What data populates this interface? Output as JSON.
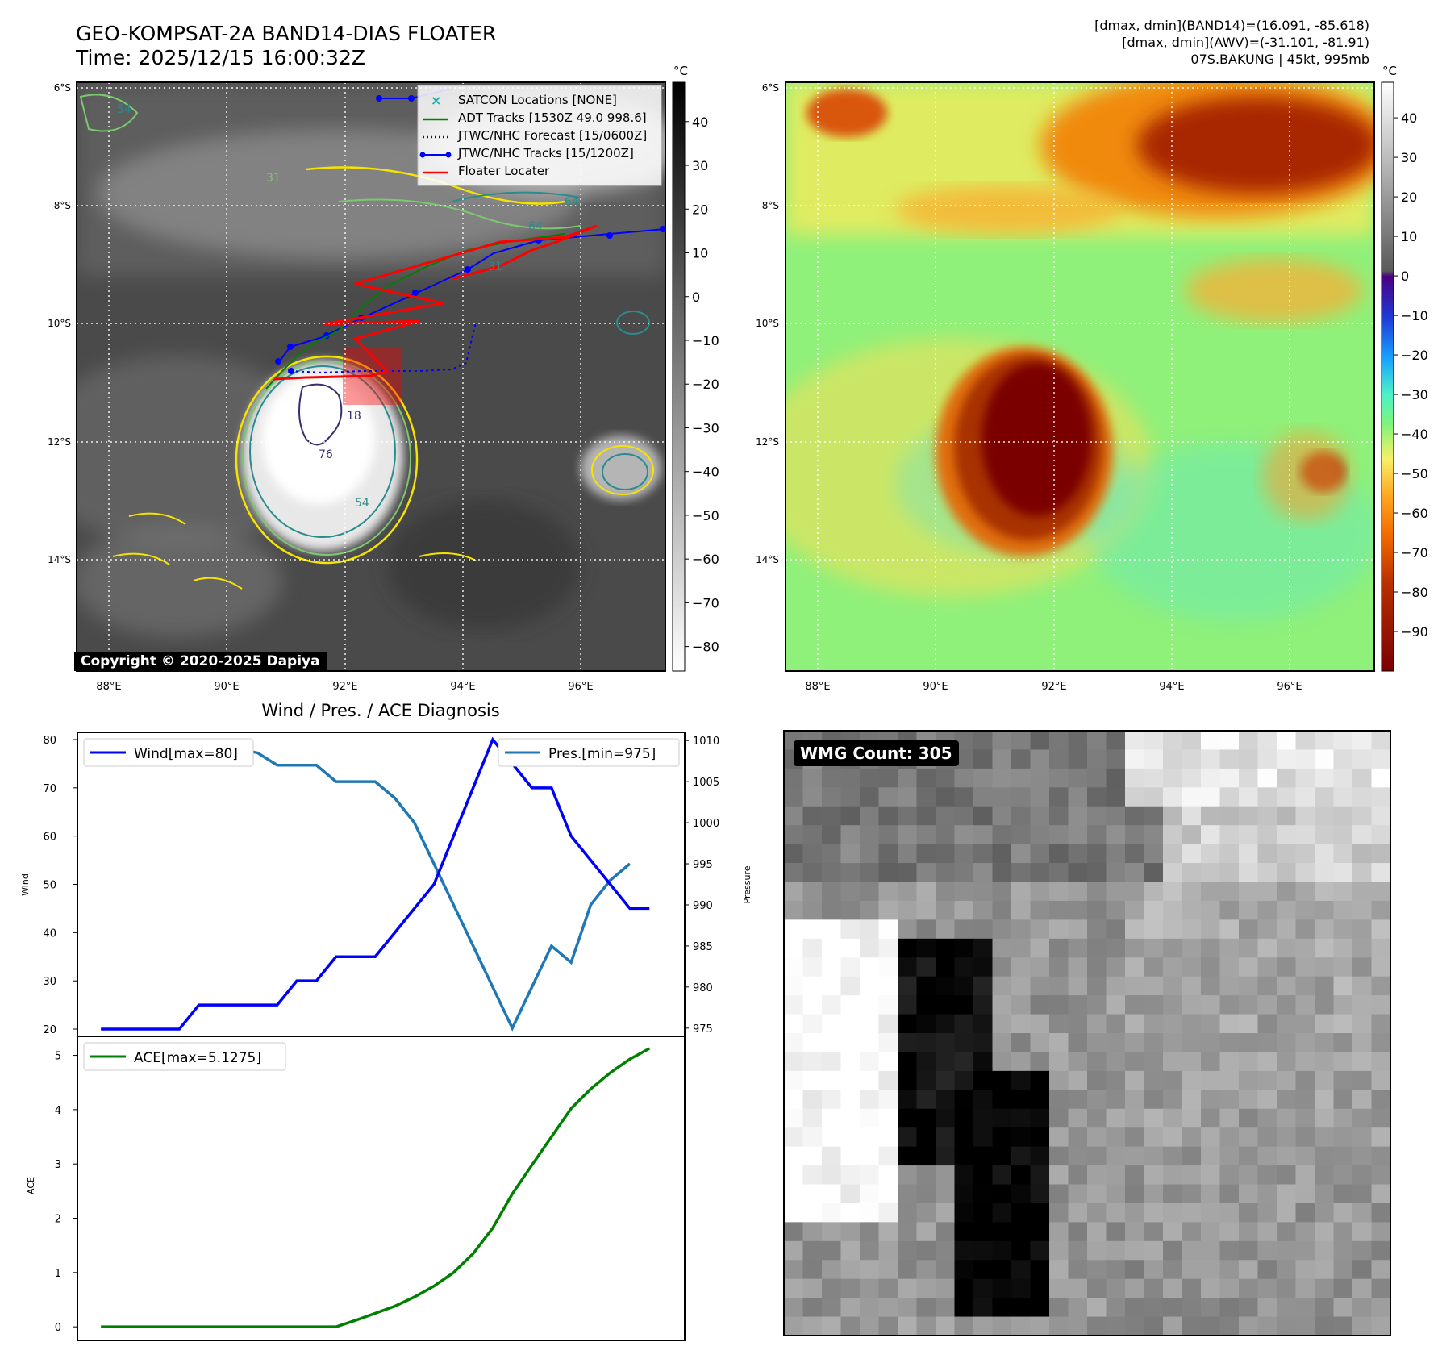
{
  "header": {
    "title_line1": "GEO-KOMPSAT-2A BAND14-DIAS FLOATER",
    "title_line2": "Time: 2025/12/15 16:00:32Z",
    "stats_line1": "[dmax, dmin](BAND14)=(16.091, -85.618)",
    "stats_line2": "[dmax, dmin](AWV)=(-31.101, -81.91)",
    "stats_line3": "07S.BAKUNG | 45kt, 995mb"
  },
  "map": {
    "lat_labels": [
      "6°S",
      "8°S",
      "10°S",
      "12°S",
      "14°S"
    ],
    "lon_labels": [
      "88°E",
      "90°E",
      "92°E",
      "94°E",
      "96°E"
    ],
    "legend": [
      {
        "label": "SATCON Locations [NONE]",
        "color": "#17b5a8",
        "style": "x"
      },
      {
        "label": "ADT Tracks [1530Z 49.0 998.6]",
        "color": "#008000",
        "style": "solid"
      },
      {
        "label": "JTWC/NHC Forecast [15/0600Z]",
        "color": "#0000ff",
        "style": "dotted"
      },
      {
        "label": "JTWC/NHC Tracks [15/1200Z]",
        "color": "#0000ff",
        "style": "dots"
      },
      {
        "label": "Floater Locater",
        "color": "#ff0000",
        "style": "solid"
      }
    ],
    "contour_labels": [
      "54",
      "64",
      "31",
      "76",
      "18",
      "64",
      "54",
      "31"
    ],
    "copyright": "Copyright © 2020-2025 Dapiya"
  },
  "colorbar_left": {
    "unit": "°C",
    "ticks": [
      "40",
      "30",
      "20",
      "10",
      "0",
      "−10",
      "−20",
      "−30",
      "−40",
      "−50",
      "−60",
      "−70",
      "−80"
    ],
    "tick_values": [
      40,
      30,
      20,
      10,
      0,
      -10,
      -20,
      -30,
      -40,
      -50,
      -60,
      -70,
      -80
    ],
    "range": [
      -85.6,
      49
    ]
  },
  "colorbar_right": {
    "unit": "°C",
    "ticks": [
      "40",
      "30",
      "20",
      "10",
      "0",
      "−10",
      "−20",
      "−30",
      "−40",
      "−50",
      "−60",
      "−70",
      "−80",
      "−90"
    ],
    "tick_values": [
      40,
      30,
      20,
      10,
      0,
      -10,
      -20,
      -30,
      -40,
      -50,
      -60,
      -70,
      -80,
      -90
    ],
    "range": [
      -100,
      49
    ]
  },
  "wmg": {
    "badge": "WMG Count: 305"
  },
  "colors": {
    "wind": "#0000ff",
    "pressure": "#1f77b4",
    "ace": "#008000",
    "floater": "#ff0000",
    "adt": "#008000",
    "forecast": "#0000ff"
  },
  "chart_data": [
    {
      "type": "line",
      "title": "Wind / Pres. / ACE Diagnosis",
      "ylabel": "Wind",
      "y2label": "Pressure",
      "ylim": [
        18.5,
        81.5
      ],
      "y2lim": [
        974,
        1011
      ],
      "yticks": [
        20,
        30,
        40,
        50,
        60,
        70,
        80
      ],
      "y2ticks": [
        975,
        980,
        985,
        990,
        995,
        1000,
        1005,
        1010
      ],
      "series": [
        {
          "name": "Wind[max=80]",
          "axis": "left",
          "x": [
            0,
            1,
            2,
            3,
            4,
            5,
            6,
            7,
            8,
            9,
            10,
            11,
            12,
            13,
            14,
            15,
            16,
            17,
            18,
            19,
            20,
            21,
            22,
            23,
            24,
            25,
            26,
            27,
            28
          ],
          "values": [
            20,
            20,
            20,
            20,
            20,
            25,
            25,
            25,
            25,
            25,
            30,
            30,
            35,
            35,
            35,
            40,
            45,
            50,
            60,
            70,
            80,
            75,
            70,
            70,
            60,
            55,
            50,
            45,
            45
          ]
        },
        {
          "name": "Pres.[min=975]",
          "axis": "right",
          "x": [
            0,
            1,
            2,
            3,
            4,
            5,
            6,
            7,
            8,
            9,
            10,
            11,
            12,
            13,
            14,
            15,
            16,
            17,
            18,
            19,
            20,
            21,
            22,
            23,
            24,
            25,
            26,
            27
          ],
          "values": [
            1008,
            1008,
            1008,
            1008,
            1008,
            1007.5,
            1007.5,
            1009,
            1008.5,
            1007,
            1007,
            1007,
            1005,
            1005,
            1005,
            1003,
            1000,
            995,
            990,
            985,
            980,
            975,
            980,
            985,
            983,
            990,
            993,
            995
          ]
        }
      ]
    },
    {
      "type": "line",
      "title": "",
      "ylabel": "ACE",
      "ylim": [
        -0.25,
        5.35
      ],
      "yticks": [
        0,
        1,
        2,
        3,
        4,
        5
      ],
      "series": [
        {
          "name": "ACE[max=5.1275]",
          "x": [
            0,
            1,
            2,
            3,
            4,
            5,
            6,
            7,
            8,
            9,
            10,
            11,
            12,
            13,
            14,
            15,
            16,
            17,
            18,
            19,
            20,
            21,
            22,
            23,
            24,
            25,
            26,
            27,
            28
          ],
          "values": [
            0,
            0,
            0,
            0,
            0,
            0,
            0,
            0,
            0,
            0,
            0,
            0,
            0,
            0.12,
            0.25,
            0.38,
            0.55,
            0.75,
            1.0,
            1.35,
            1.82,
            2.45,
            2.98,
            3.5,
            4.02,
            4.38,
            4.68,
            4.93,
            5.1275
          ]
        }
      ]
    }
  ]
}
